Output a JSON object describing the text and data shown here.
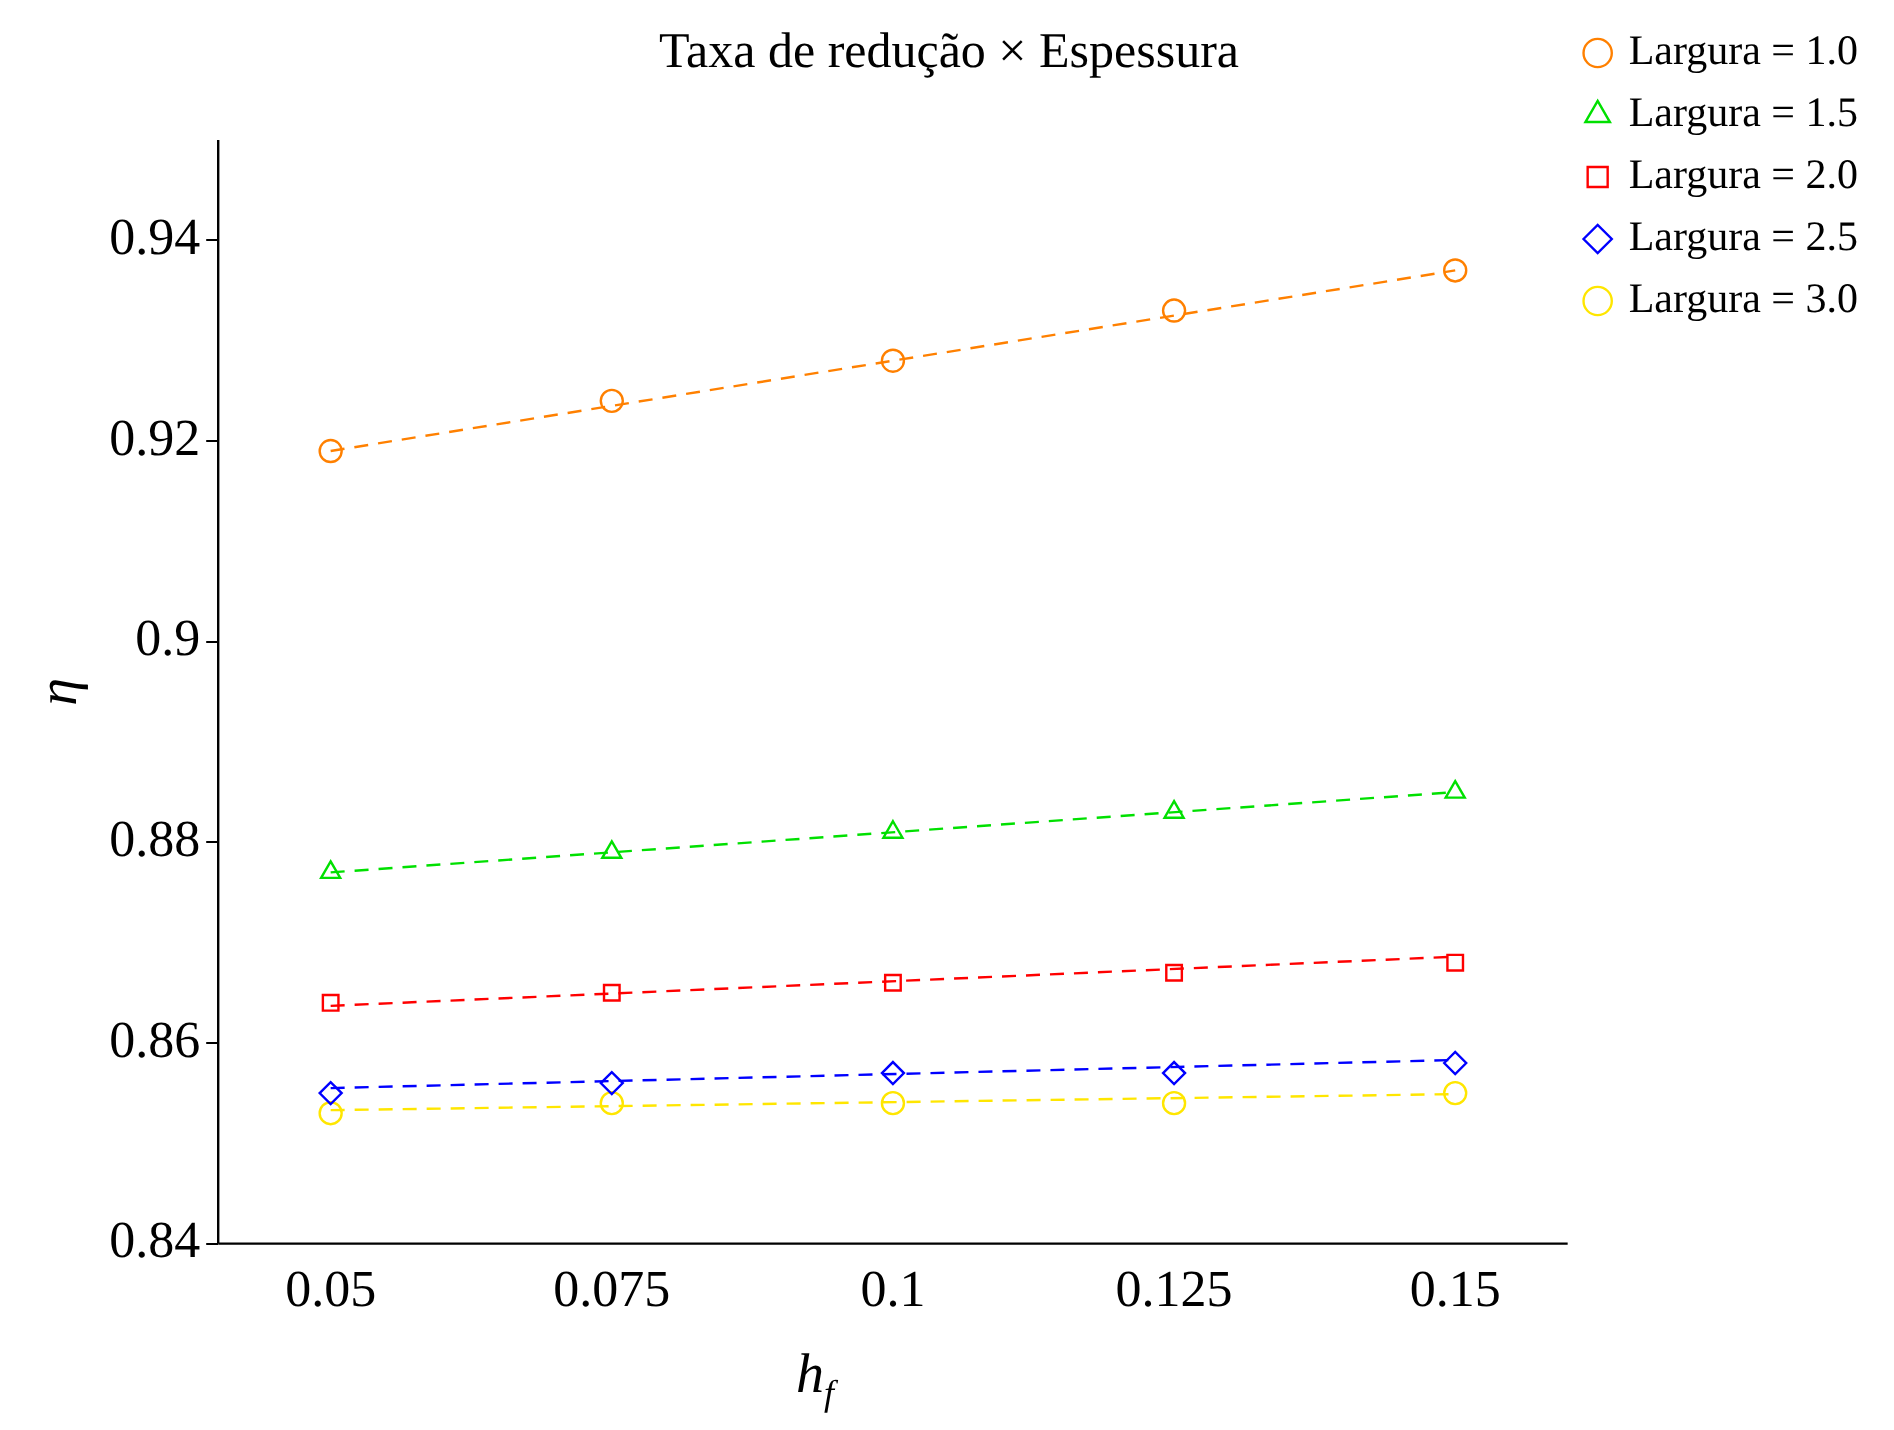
{
  "chart_data": {
    "type": "scatter",
    "title": "Taxa de redução × Espessura",
    "xlabel": "h$_{f}$",
    "ylabel": "η",
    "xlim": [
      0.04,
      0.16
    ],
    "xticks": [
      0.05,
      0.075,
      0.1,
      0.125,
      0.15
    ],
    "ylim": [
      0.84,
      0.95
    ],
    "yticks": [
      0.84,
      0.86,
      0.88,
      0.9,
      0.92,
      0.94
    ],
    "grid": false,
    "legend": "top right",
    "series": [
      {
        "name": "Largura = 1.0",
        "color": "#ff8000",
        "marker": "circle",
        "x": [
          0.05,
          0.075,
          0.1,
          0.125,
          0.15
        ],
        "values": [
          0.919,
          0.924,
          0.928,
          0.933,
          0.937
        ]
      },
      {
        "name": "Largura = 1.5",
        "color": "#00e000",
        "marker": "triangle",
        "x": [
          0.05,
          0.075,
          0.1,
          0.125,
          0.15
        ],
        "values": [
          0.877,
          0.879,
          0.881,
          0.883,
          0.885
        ]
      },
      {
        "name": "Largura = 2.0",
        "color": "#ff0000",
        "marker": "square",
        "x": [
          0.05,
          0.075,
          0.1,
          0.125,
          0.15
        ],
        "values": [
          0.864,
          0.865,
          0.866,
          0.867,
          0.868
        ]
      },
      {
        "name": "Largura = 2.5",
        "color": "#0000ff",
        "marker": "diamond",
        "x": [
          0.05,
          0.075,
          0.1,
          0.125,
          0.15
        ],
        "values": [
          0.855,
          0.856,
          0.857,
          0.857,
          0.858
        ]
      },
      {
        "name": "Largura = 3.0",
        "color": "#ffe600",
        "marker": "circle",
        "x": [
          0.05,
          0.075,
          0.1,
          0.125,
          0.15
        ],
        "values": [
          0.853,
          0.854,
          0.854,
          0.854,
          0.855
        ]
      },
      {
        "type": "line",
        "color": "#ff8000",
        "line_style": "dashed",
        "marker": "none",
        "x": [
          0.05,
          0.15
        ],
        "values": [
          0.919,
          0.937
        ]
      },
      {
        "type": "line",
        "color": "#00e000",
        "line_style": "dashed",
        "marker": "none",
        "x": [
          0.05,
          0.15
        ],
        "values": [
          0.877,
          0.885
        ]
      },
      {
        "type": "line",
        "color": "#ff0000",
        "line_style": "dashed",
        "marker": "none",
        "x": [
          0.05,
          0.15
        ],
        "values": [
          0.8637,
          0.8686
        ]
      },
      {
        "type": "line",
        "color": "#0000ff",
        "line_style": "dashed",
        "marker": "none",
        "x": [
          0.05,
          0.15
        ],
        "values": [
          0.8555,
          0.8583
        ]
      },
      {
        "type": "line",
        "color": "#ffe600",
        "line_style": "dashed",
        "marker": "none",
        "x": [
          0.05,
          0.15
        ],
        "values": [
          0.8533,
          0.8549
        ]
      }
    ]
  }
}
